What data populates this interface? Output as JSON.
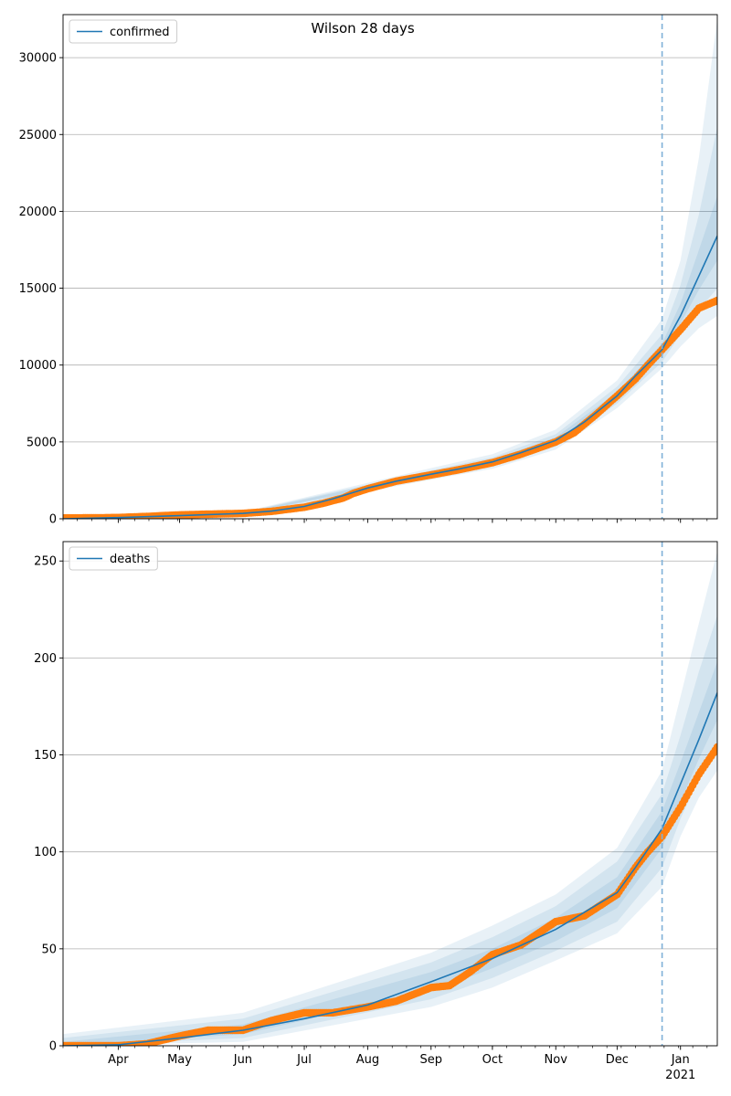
{
  "figure": {
    "title": "Wilson 28 days"
  },
  "colors": {
    "model": "#1f77b4",
    "observed": "#ff7f0e",
    "band": "#1f77b4",
    "forecast_line": "#7fb1d8",
    "grid": "#b0b0b0"
  },
  "chart_data": [
    {
      "type": "line",
      "legend": "confirmed",
      "legend_position": "top-left",
      "grid": "horizontal",
      "x_ticks": [
        "Apr",
        "May",
        "Jun",
        "Jul",
        "Aug",
        "Sep",
        "Oct",
        "Nov",
        "Dec",
        "Jan"
      ],
      "x_tick_dates": [
        "2020-04-01",
        "2020-05-01",
        "2020-06-01",
        "2020-07-01",
        "2020-08-01",
        "2020-09-01",
        "2020-10-01",
        "2020-11-01",
        "2020-12-01",
        "2021-01-01"
      ],
      "x_secondary_label": "2021",
      "xlim": [
        "2020-03-05",
        "2021-01-19"
      ],
      "ylim": [
        0,
        32800
      ],
      "y_ticks": [
        0,
        5000,
        10000,
        15000,
        20000,
        25000,
        30000
      ],
      "forecast_start": "2020-12-23",
      "series": [
        {
          "name": "confirmed",
          "style": "line",
          "dates": [
            "2020-03-05",
            "2020-04-01",
            "2020-05-01",
            "2020-06-01",
            "2020-06-15",
            "2020-07-01",
            "2020-07-15",
            "2020-08-01",
            "2020-08-15",
            "2020-09-01",
            "2020-09-15",
            "2020-10-01",
            "2020-10-15",
            "2020-11-01",
            "2020-11-15",
            "2020-12-01",
            "2020-12-10",
            "2020-12-23",
            "2021-01-01",
            "2021-01-10",
            "2021-01-19"
          ],
          "values": [
            0,
            80,
            200,
            350,
            500,
            800,
            1300,
            2000,
            2450,
            2900,
            3250,
            3700,
            4300,
            5100,
            6300,
            8000,
            9300,
            11000,
            13200,
            15800,
            18400
          ]
        },
        {
          "name": "observed",
          "style": "markers",
          "dates": [
            "2020-03-05",
            "2020-03-20",
            "2020-04-01",
            "2020-04-15",
            "2020-05-01",
            "2020-05-15",
            "2020-06-01",
            "2020-06-15",
            "2020-07-01",
            "2020-07-10",
            "2020-07-20",
            "2020-07-25",
            "2020-08-01",
            "2020-08-15",
            "2020-09-01",
            "2020-09-15",
            "2020-10-01",
            "2020-10-15",
            "2020-11-01",
            "2020-11-10",
            "2020-11-20",
            "2020-12-01",
            "2020-12-10",
            "2020-12-16",
            "2020-12-23",
            "2021-01-01",
            "2021-01-10",
            "2021-01-19"
          ],
          "values": [
            50,
            60,
            80,
            150,
            250,
            300,
            350,
            480,
            750,
            1000,
            1350,
            1650,
            1950,
            2450,
            2850,
            3200,
            3650,
            4200,
            5000,
            5600,
            6700,
            8000,
            9100,
            10000,
            11000,
            12300,
            13700,
            14200
          ]
        }
      ],
      "bands": [
        {
          "dates": [
            "2020-03-05",
            "2020-06-01",
            "2020-09-01",
            "2020-10-01",
            "2020-11-01",
            "2020-12-01",
            "2020-12-23",
            "2021-01-01",
            "2021-01-10",
            "2021-01-19"
          ],
          "lower": [
            0,
            250,
            2550,
            3250,
            4500,
            7200,
            9800,
            11200,
            12400,
            13200
          ],
          "upper": [
            150,
            450,
            3300,
            4200,
            5800,
            9000,
            13000,
            16800,
            23500,
            32500
          ]
        },
        {
          "dates": [
            "2020-03-05",
            "2020-06-01",
            "2020-09-01",
            "2020-10-01",
            "2020-11-01",
            "2020-12-01",
            "2020-12-23",
            "2021-01-01",
            "2021-01-10",
            "2021-01-19"
          ],
          "lower": [
            0,
            280,
            2650,
            3400,
            4700,
            7500,
            10200,
            12000,
            13600,
            15000
          ],
          "upper": [
            120,
            420,
            3150,
            4000,
            5500,
            8600,
            12000,
            15200,
            19800,
            25500
          ]
        },
        {
          "dates": [
            "2020-03-05",
            "2020-06-01",
            "2020-09-01",
            "2020-10-01",
            "2020-11-01",
            "2020-12-01",
            "2020-12-23",
            "2021-01-01",
            "2021-01-10",
            "2021-01-19"
          ],
          "lower": [
            0,
            310,
            2750,
            3550,
            4900,
            7750,
            10600,
            12700,
            14900,
            16800
          ],
          "upper": [
            100,
            390,
            3050,
            3850,
            5300,
            8250,
            11400,
            14000,
            17500,
            21000
          ]
        }
      ]
    },
    {
      "type": "line",
      "legend": "deaths",
      "legend_position": "top-left",
      "grid": "horizontal",
      "x_ticks": [
        "Apr",
        "May",
        "Jun",
        "Jul",
        "Aug",
        "Sep",
        "Oct",
        "Nov",
        "Dec",
        "Jan"
      ],
      "x_tick_dates": [
        "2020-04-01",
        "2020-05-01",
        "2020-06-01",
        "2020-07-01",
        "2020-08-01",
        "2020-09-01",
        "2020-10-01",
        "2020-11-01",
        "2020-12-01",
        "2021-01-01"
      ],
      "x_secondary_label": "2021",
      "xlim": [
        "2020-03-05",
        "2021-01-19"
      ],
      "ylim": [
        0,
        260
      ],
      "y_ticks": [
        0,
        50,
        100,
        150,
        200,
        250
      ],
      "forecast_start": "2020-12-23",
      "series": [
        {
          "name": "deaths",
          "style": "line",
          "dates": [
            "2020-03-05",
            "2020-04-01",
            "2020-05-01",
            "2020-06-01",
            "2020-07-01",
            "2020-08-01",
            "2020-09-01",
            "2020-10-01",
            "2020-11-01",
            "2020-12-01",
            "2020-12-10",
            "2020-12-23",
            "2021-01-01",
            "2021-01-10",
            "2021-01-19"
          ],
          "values": [
            0,
            0.5,
            4,
            8,
            14,
            21,
            33,
            45,
            60,
            79,
            92,
            112,
            135,
            158,
            182
          ]
        },
        {
          "name": "observed",
          "style": "markers",
          "dates": [
            "2020-03-05",
            "2020-04-01",
            "2020-04-15",
            "2020-05-01",
            "2020-05-15",
            "2020-06-01",
            "2020-06-15",
            "2020-07-01",
            "2020-07-15",
            "2020-08-01",
            "2020-08-15",
            "2020-09-01",
            "2020-09-10",
            "2020-09-20",
            "2020-10-01",
            "2020-10-15",
            "2020-11-01",
            "2020-11-15",
            "2020-12-01",
            "2020-12-10",
            "2020-12-16",
            "2020-12-23",
            "2021-01-01",
            "2021-01-10",
            "2021-01-19"
          ],
          "values": [
            0,
            0,
            1,
            5,
            8,
            8,
            13,
            17,
            17,
            20,
            23,
            30,
            31,
            38,
            47,
            52,
            64,
            67,
            78,
            92,
            100,
            108,
            123,
            140,
            154
          ]
        }
      ],
      "bands": [
        {
          "dates": [
            "2020-03-05",
            "2020-06-01",
            "2020-09-01",
            "2020-10-01",
            "2020-11-01",
            "2020-12-01",
            "2020-12-23",
            "2021-01-01",
            "2021-01-10",
            "2021-01-19"
          ],
          "lower": [
            0,
            2,
            20,
            30,
            44,
            58,
            82,
            108,
            128,
            142
          ],
          "upper": [
            6,
            17,
            48,
            62,
            78,
            102,
            142,
            180,
            218,
            255
          ]
        },
        {
          "dates": [
            "2020-03-05",
            "2020-06-01",
            "2020-09-01",
            "2020-10-01",
            "2020-11-01",
            "2020-12-01",
            "2020-12-23",
            "2021-01-01",
            "2021-01-10",
            "2021-01-19"
          ],
          "lower": [
            0,
            4,
            24,
            35,
            49,
            64,
            92,
            117,
            138,
            155
          ],
          "upper": [
            4,
            14,
            43,
            56,
            72,
            95,
            130,
            160,
            193,
            222
          ]
        },
        {
          "dates": [
            "2020-03-05",
            "2020-06-01",
            "2020-09-01",
            "2020-10-01",
            "2020-11-01",
            "2020-12-01",
            "2020-12-23",
            "2021-01-01",
            "2021-01-10",
            "2021-01-19"
          ],
          "lower": [
            0,
            6,
            28,
            40,
            54,
            71,
            102,
            126,
            148,
            168
          ],
          "upper": [
            2,
            11,
            38,
            50,
            66,
            87,
            121,
            146,
            172,
            198
          ]
        }
      ]
    }
  ]
}
